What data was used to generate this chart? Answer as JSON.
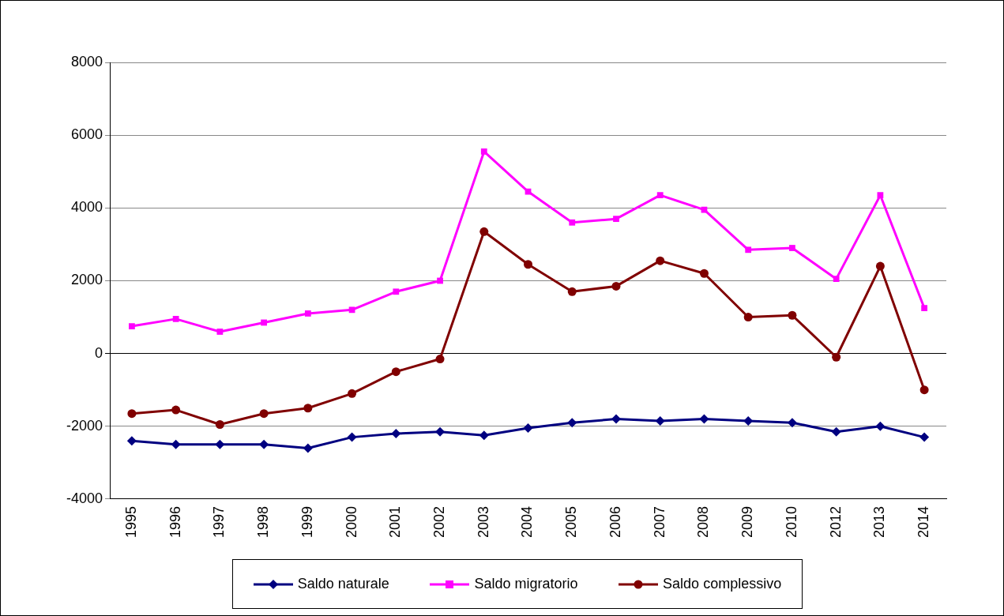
{
  "chart_data": {
    "type": "line",
    "categories": [
      "1995",
      "1996",
      "1997",
      "1998",
      "1999",
      "2000",
      "2001",
      "2002",
      "2003",
      "2004",
      "2005",
      "2006",
      "2007",
      "2008",
      "2009",
      "2010",
      "2012",
      "2013",
      "2014"
    ],
    "series": [
      {
        "name": "Saldo naturale",
        "color": "#000080",
        "marker": "diamond",
        "values": [
          -2400,
          -2500,
          -2500,
          -2500,
          -2600,
          -2300,
          -2200,
          -2150,
          -2250,
          -2050,
          -1900,
          -1800,
          -1850,
          -1800,
          -1850,
          -1900,
          -2150,
          -2000,
          -2300
        ]
      },
      {
        "name": "Saldo migratorio",
        "color": "#ff00ff",
        "marker": "square",
        "values": [
          750,
          950,
          600,
          850,
          1100,
          1200,
          1700,
          2000,
          5550,
          4450,
          3600,
          3700,
          4350,
          3950,
          2850,
          2900,
          2050,
          4350,
          1250
        ]
      },
      {
        "name": "Saldo complessivo",
        "color": "#800000",
        "marker": "circle",
        "values": [
          -1650,
          -1550,
          -1950,
          -1650,
          -1500,
          -1100,
          -500,
          -150,
          3350,
          2450,
          1700,
          1850,
          2550,
          2200,
          1000,
          1050,
          -100,
          2400,
          -1000
        ]
      }
    ],
    "ylim": [
      -4000,
      8000
    ],
    "yticks": [
      -4000,
      -2000,
      0,
      2000,
      4000,
      6000,
      8000
    ],
    "grid": "y",
    "legend": "bottom",
    "line_style": "solid"
  }
}
